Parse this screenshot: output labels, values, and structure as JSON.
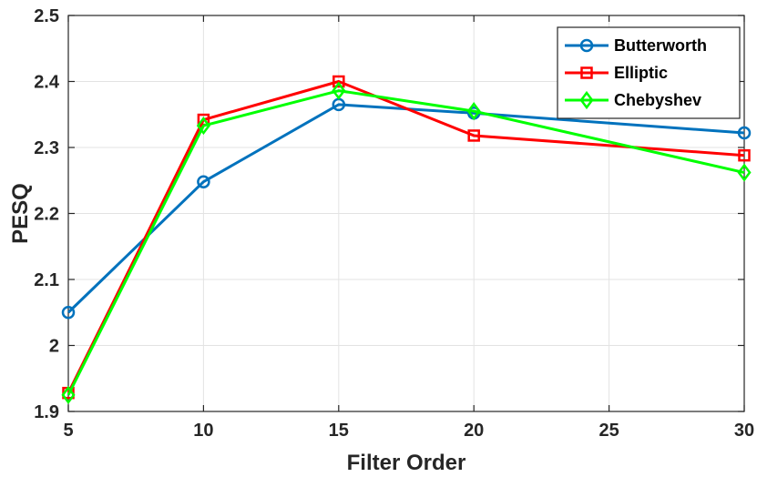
{
  "chart_data": {
    "type": "line",
    "xlabel": "Filter Order",
    "ylabel": "PESQ",
    "x": [
      5,
      10,
      15,
      20,
      30
    ],
    "xlim": [
      5,
      30
    ],
    "ylim": [
      1.9,
      2.5
    ],
    "xticks": [
      5,
      10,
      15,
      20,
      25,
      30
    ],
    "yticks": [
      1.9,
      2,
      2.1,
      2.2,
      2.3,
      2.4,
      2.5
    ],
    "xtick_labels": [
      "5",
      "10",
      "15",
      "20",
      "25",
      "30"
    ],
    "ytick_labels": [
      "1.9",
      "2",
      "2.1",
      "2.2",
      "2.3",
      "2.4",
      "2.5"
    ],
    "grid": true,
    "legend_position": "top-right",
    "series": [
      {
        "name": "Butterworth",
        "color": "#0072BD",
        "marker": "circle",
        "values": [
          2.05,
          2.248,
          2.365,
          2.352,
          2.322
        ]
      },
      {
        "name": "Elliptic",
        "color": "#FF0000",
        "marker": "square",
        "values": [
          1.928,
          2.342,
          2.4,
          2.318,
          2.288
        ]
      },
      {
        "name": "Chebyshev",
        "color": "#00FF00",
        "marker": "diamond",
        "values": [
          1.925,
          2.333,
          2.386,
          2.355,
          2.262
        ]
      }
    ]
  }
}
